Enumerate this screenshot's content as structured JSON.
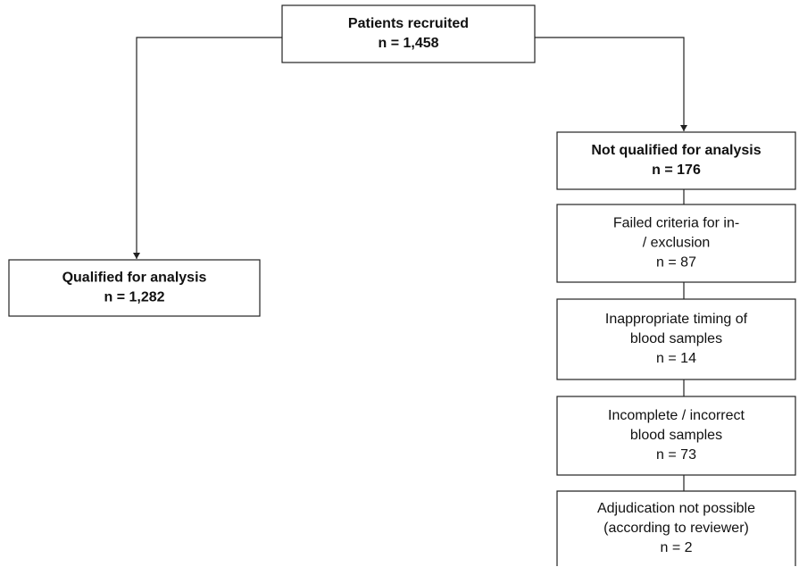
{
  "nodes": [
    {
      "lines": [
        "Patients recruited",
        "n = 1,458"
      ]
    },
    {
      "lines": [
        "Qualified for analysis",
        "n = 1,282"
      ]
    },
    {
      "lines": [
        "Not qualified for analysis",
        "n = 176"
      ]
    },
    {
      "lines": [
        "Failed criteria for in-",
        "/ exclusion",
        "n = 87"
      ]
    },
    {
      "lines": [
        "Inappropriate timing of",
        "blood samples",
        "n = 14"
      ]
    },
    {
      "lines": [
        "Incomplete / incorrect",
        "blood samples",
        "n = 73"
      ]
    },
    {
      "lines": [
        "Adjudication not possible",
        "(according to reviewer)",
        "n = 2"
      ]
    }
  ]
}
